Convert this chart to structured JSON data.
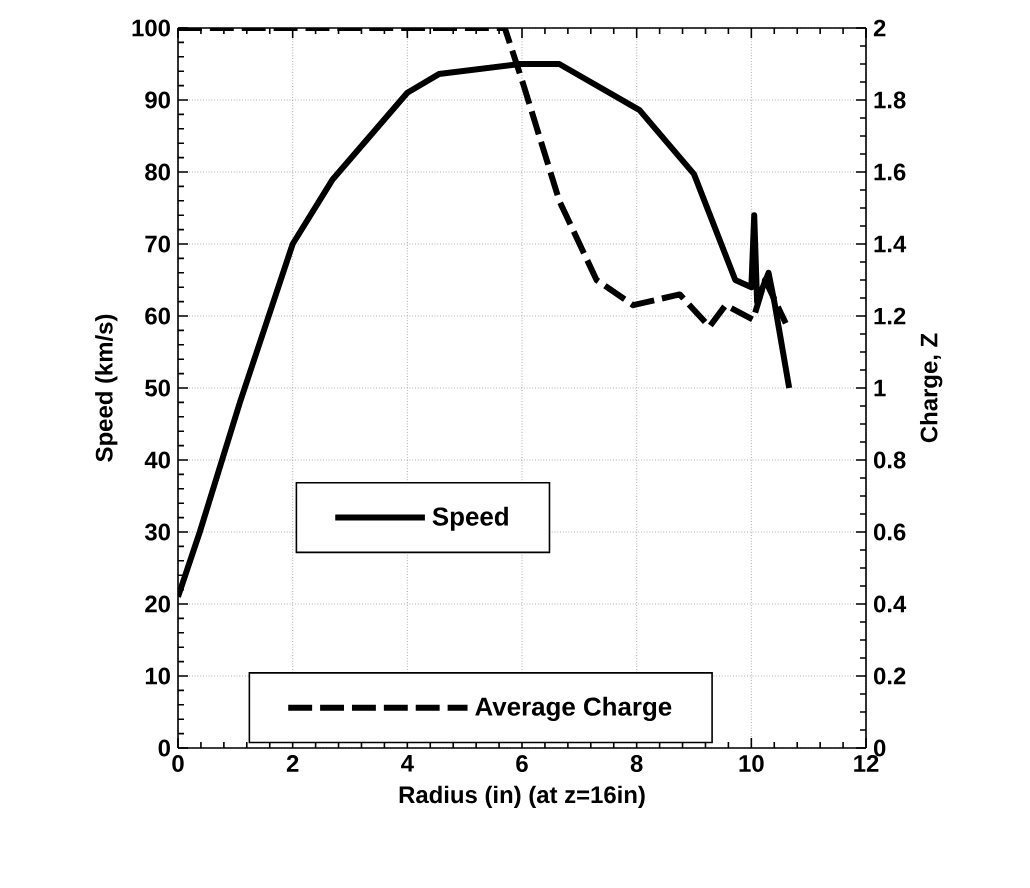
{
  "chart_data": {
    "type": "line",
    "xlabel": "Radius (in)   (at z=16in)",
    "ylabel": "Speed (km/s)",
    "y2label": "Charge, Z",
    "xlim": [
      0,
      12
    ],
    "xticks": [
      0,
      2,
      4,
      6,
      8,
      10,
      12
    ],
    "ylim": [
      0,
      100
    ],
    "yticks": [
      0,
      10,
      20,
      30,
      40,
      50,
      60,
      70,
      80,
      90,
      100
    ],
    "y2lim": [
      0,
      2
    ],
    "y2ticks": [
      0,
      0.2,
      0.4,
      0.6,
      0.8,
      1,
      1.2,
      1.4,
      1.6,
      1.8,
      2
    ],
    "grid": true,
    "legend": "bottom",
    "series": [
      {
        "name": "Speed",
        "color": "#000000",
        "line_style": "solid",
        "x": [
          0,
          0.38,
          1.08,
          2.0,
          2.7,
          4.0,
          4.55,
          5.96,
          6.65,
          8.05,
          9.0,
          9.72,
          10.0,
          10.05,
          10.1,
          10.3,
          10.4,
          10.66
        ],
        "values": [
          21,
          30,
          48,
          70,
          79,
          91,
          93.6,
          95,
          95,
          88.6,
          79.7,
          65,
          64,
          74,
          62,
          66,
          62,
          50
        ]
      },
      {
        "name": "Average Charge",
        "color": "#000000",
        "line_style": "dashed",
        "axis": "y2",
        "x": [
          0,
          5.7,
          6.03,
          6.65,
          7.3,
          7.94,
          8.75,
          9.27,
          9.55,
          10.03,
          10.24,
          10.6
        ],
        "values": [
          2,
          2,
          1.84,
          1.52,
          1.3,
          1.23,
          1.26,
          1.17,
          1.23,
          1.19,
          1.3,
          1.18
        ]
      }
    ]
  }
}
